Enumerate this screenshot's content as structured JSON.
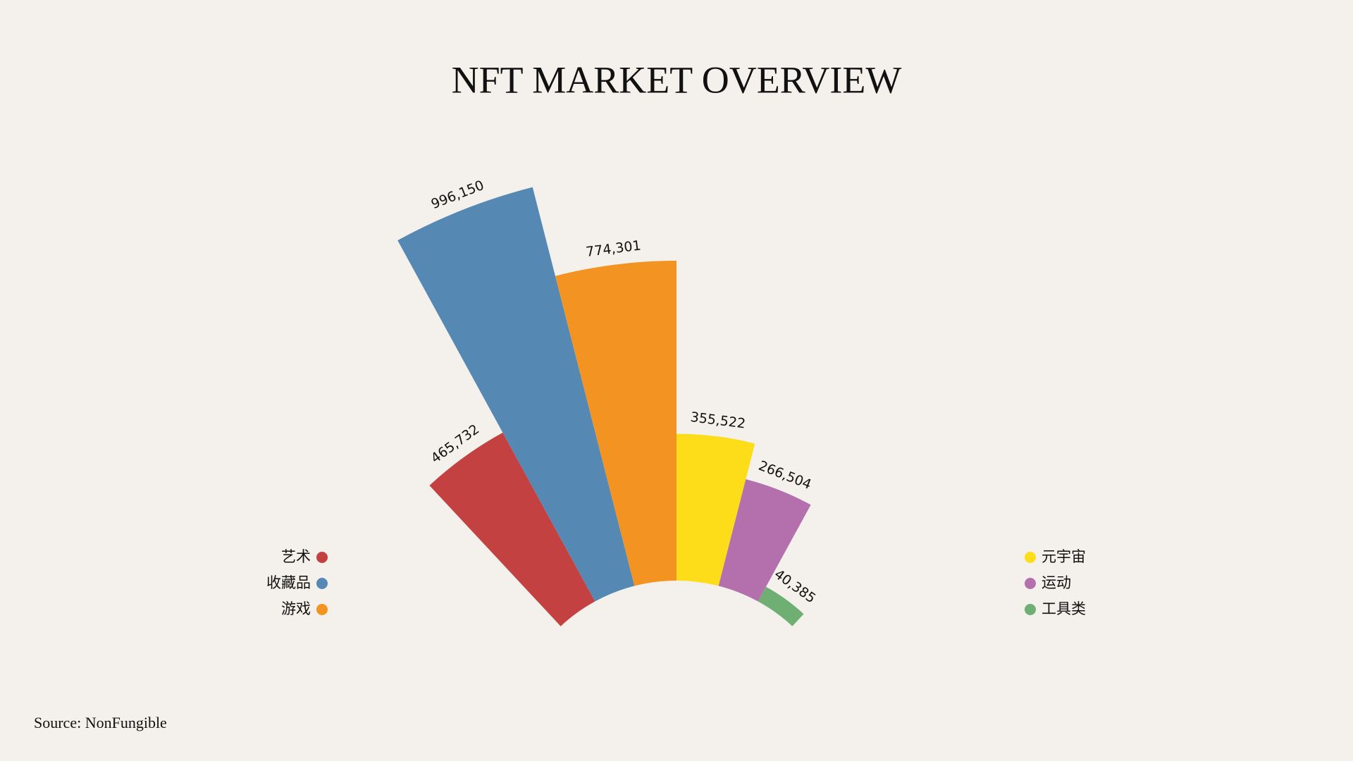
{
  "chart_data": {
    "type": "radial-bar",
    "title": "NFT MARKET OVERVIEW",
    "categories": [
      "艺术",
      "收藏品",
      "游戏",
      "元宇宙",
      "运动",
      "工具类"
    ],
    "values": [
      465732,
      996150,
      774301,
      355522,
      266504,
      40385
    ],
    "value_labels": [
      "465,732",
      "996,150",
      "774,301",
      "355,522",
      "266,504",
      "40,385"
    ],
    "colors": [
      "#c44142",
      "#5589b4",
      "#f39422",
      "#fddd1a",
      "#b370ad",
      "#6faf73"
    ],
    "source": "Source: NonFungible"
  }
}
